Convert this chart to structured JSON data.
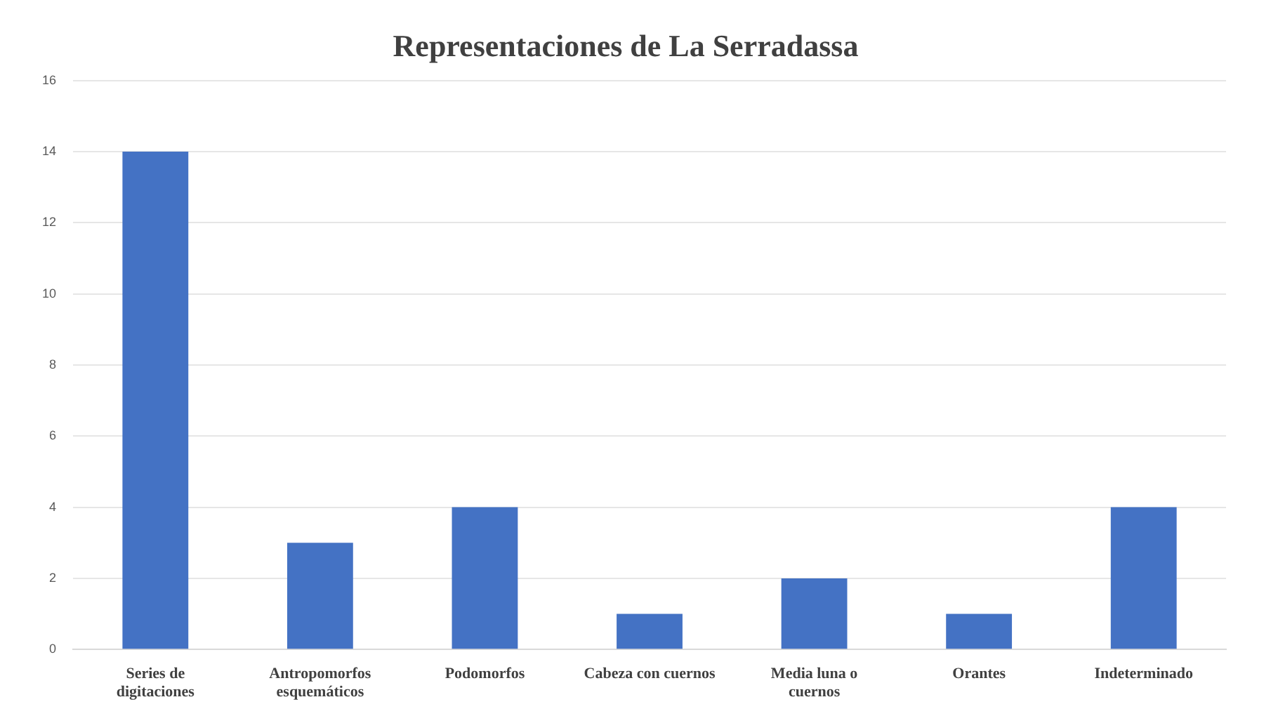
{
  "chart_data": {
    "type": "bar",
    "title": "Representaciones de La Serradassa",
    "categories": [
      "Series de digitaciones",
      "Antropomorfos esquemáticos",
      "Podomorfos",
      "Cabeza con cuernos",
      "Media luna o cuernos",
      "Orantes",
      "Indeterminado"
    ],
    "values": [
      14,
      3,
      4,
      1,
      2,
      1,
      4
    ],
    "color": "#4472c4",
    "ylim": [
      0,
      16
    ],
    "yticks": [
      0,
      2,
      4,
      6,
      8,
      10,
      12,
      14,
      16
    ],
    "grid": "y"
  }
}
